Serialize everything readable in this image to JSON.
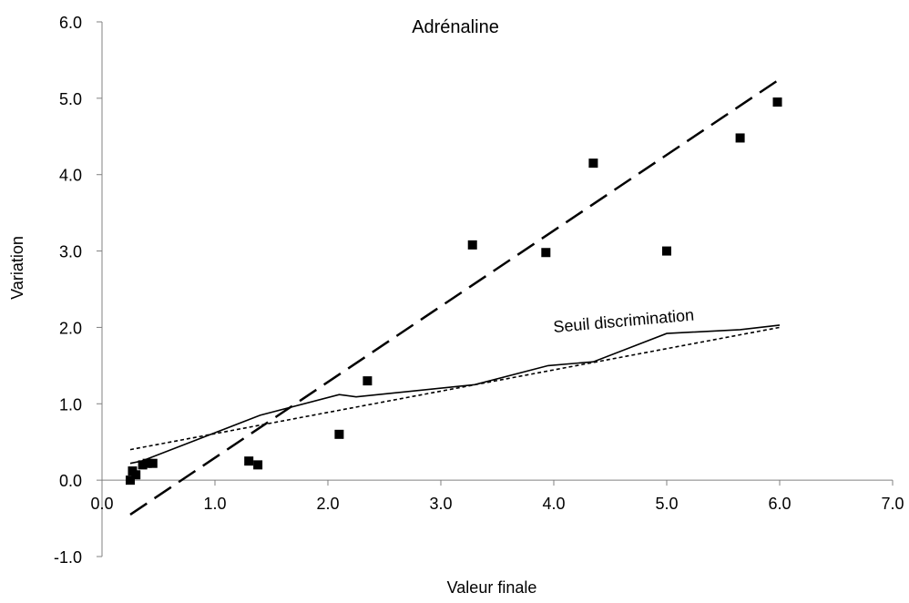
{
  "chart_data": {
    "type": "scatter",
    "title": "Adrénaline",
    "xlabel": "Valeur finale",
    "ylabel": "Variation",
    "xlim": [
      0,
      7
    ],
    "ylim": [
      -1,
      6
    ],
    "xticks": [
      "0.0",
      "1.0",
      "2.0",
      "3.0",
      "4.0",
      "5.0",
      "6.0",
      "7.0"
    ],
    "yticks": [
      "-1.0",
      "0.0",
      "1.0",
      "2.0",
      "3.0",
      "4.0",
      "5.0",
      "6.0"
    ],
    "grid": false,
    "annotations": [
      {
        "text": "Seuil discrimination"
      }
    ],
    "series": [
      {
        "kind": "points",
        "marker": "square",
        "x": [
          0.25,
          0.27,
          0.3,
          0.36,
          0.4,
          0.45,
          1.3,
          1.38,
          2.1,
          2.35,
          3.28,
          3.93,
          4.35,
          5.0,
          5.65,
          5.98
        ],
        "y": [
          0.0,
          0.12,
          0.07,
          0.2,
          0.22,
          0.22,
          0.25,
          0.2,
          0.6,
          1.3,
          3.08,
          2.98,
          4.15,
          3.0,
          4.48,
          4.95
        ]
      },
      {
        "kind": "line",
        "style": "long-dash",
        "x": [
          0.25,
          6.0
        ],
        "y": [
          -0.45,
          5.25
        ]
      },
      {
        "kind": "line",
        "style": "solid",
        "x": [
          0.25,
          0.35,
          1.4,
          2.1,
          2.25,
          3.3,
          3.95,
          4.35,
          5.0,
          5.65,
          6.0
        ],
        "y": [
          0.22,
          0.25,
          0.85,
          1.12,
          1.09,
          1.25,
          1.5,
          1.55,
          1.92,
          1.97,
          2.03
        ]
      },
      {
        "kind": "line",
        "style": "short-dash",
        "x": [
          0.25,
          6.0
        ],
        "y": [
          0.4,
          2.0
        ]
      }
    ]
  }
}
